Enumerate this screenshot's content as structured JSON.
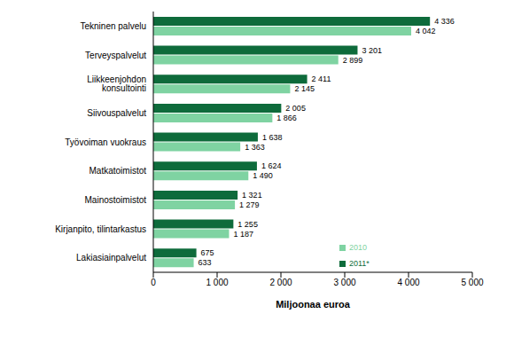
{
  "chart_data": {
    "type": "bar",
    "orientation": "horizontal",
    "categories": [
      "Tekninen palvelu",
      "Terveyspalvelut",
      "Liikkeenjohdon konsultointi",
      "Siivouspalvelut",
      "Työvoiman vuokraus",
      "Matkatoimistot",
      "Mainostoimistot",
      "Kirjanpito, tilintarkastus",
      "Lakiasiainpalvelut"
    ],
    "series": [
      {
        "name": "2011*",
        "color": "#0e6b3b",
        "values": [
          4336,
          3201,
          2411,
          2005,
          1638,
          1624,
          1321,
          1255,
          675
        ],
        "value_labels": [
          "4 336",
          "3 201",
          "2 411",
          "2 005",
          "1 638",
          "1 624",
          "1 321",
          "1 255",
          "675"
        ]
      },
      {
        "name": "2010",
        "color": "#7fd3a2",
        "values": [
          4042,
          2899,
          2145,
          1866,
          1363,
          1490,
          1279,
          1187,
          633
        ],
        "value_labels": [
          "4 042",
          "2 899",
          "2 145",
          "1 866",
          "1 363",
          "1 490",
          "1 279",
          "1 187",
          "633"
        ]
      }
    ],
    "x_label": "Miljoonaa euroa",
    "xlim": [
      0,
      5000
    ],
    "xticks": [
      {
        "value": 0,
        "label": "0"
      },
      {
        "value": 1000,
        "label": "1 000"
      },
      {
        "value": 2000,
        "label": "2 000"
      },
      {
        "value": 3000,
        "label": "3 000"
      },
      {
        "value": 4000,
        "label": "4 000"
      },
      {
        "value": 5000,
        "label": "5 000"
      }
    ],
    "grid": false,
    "legend": "right",
    "data_labels": true
  }
}
